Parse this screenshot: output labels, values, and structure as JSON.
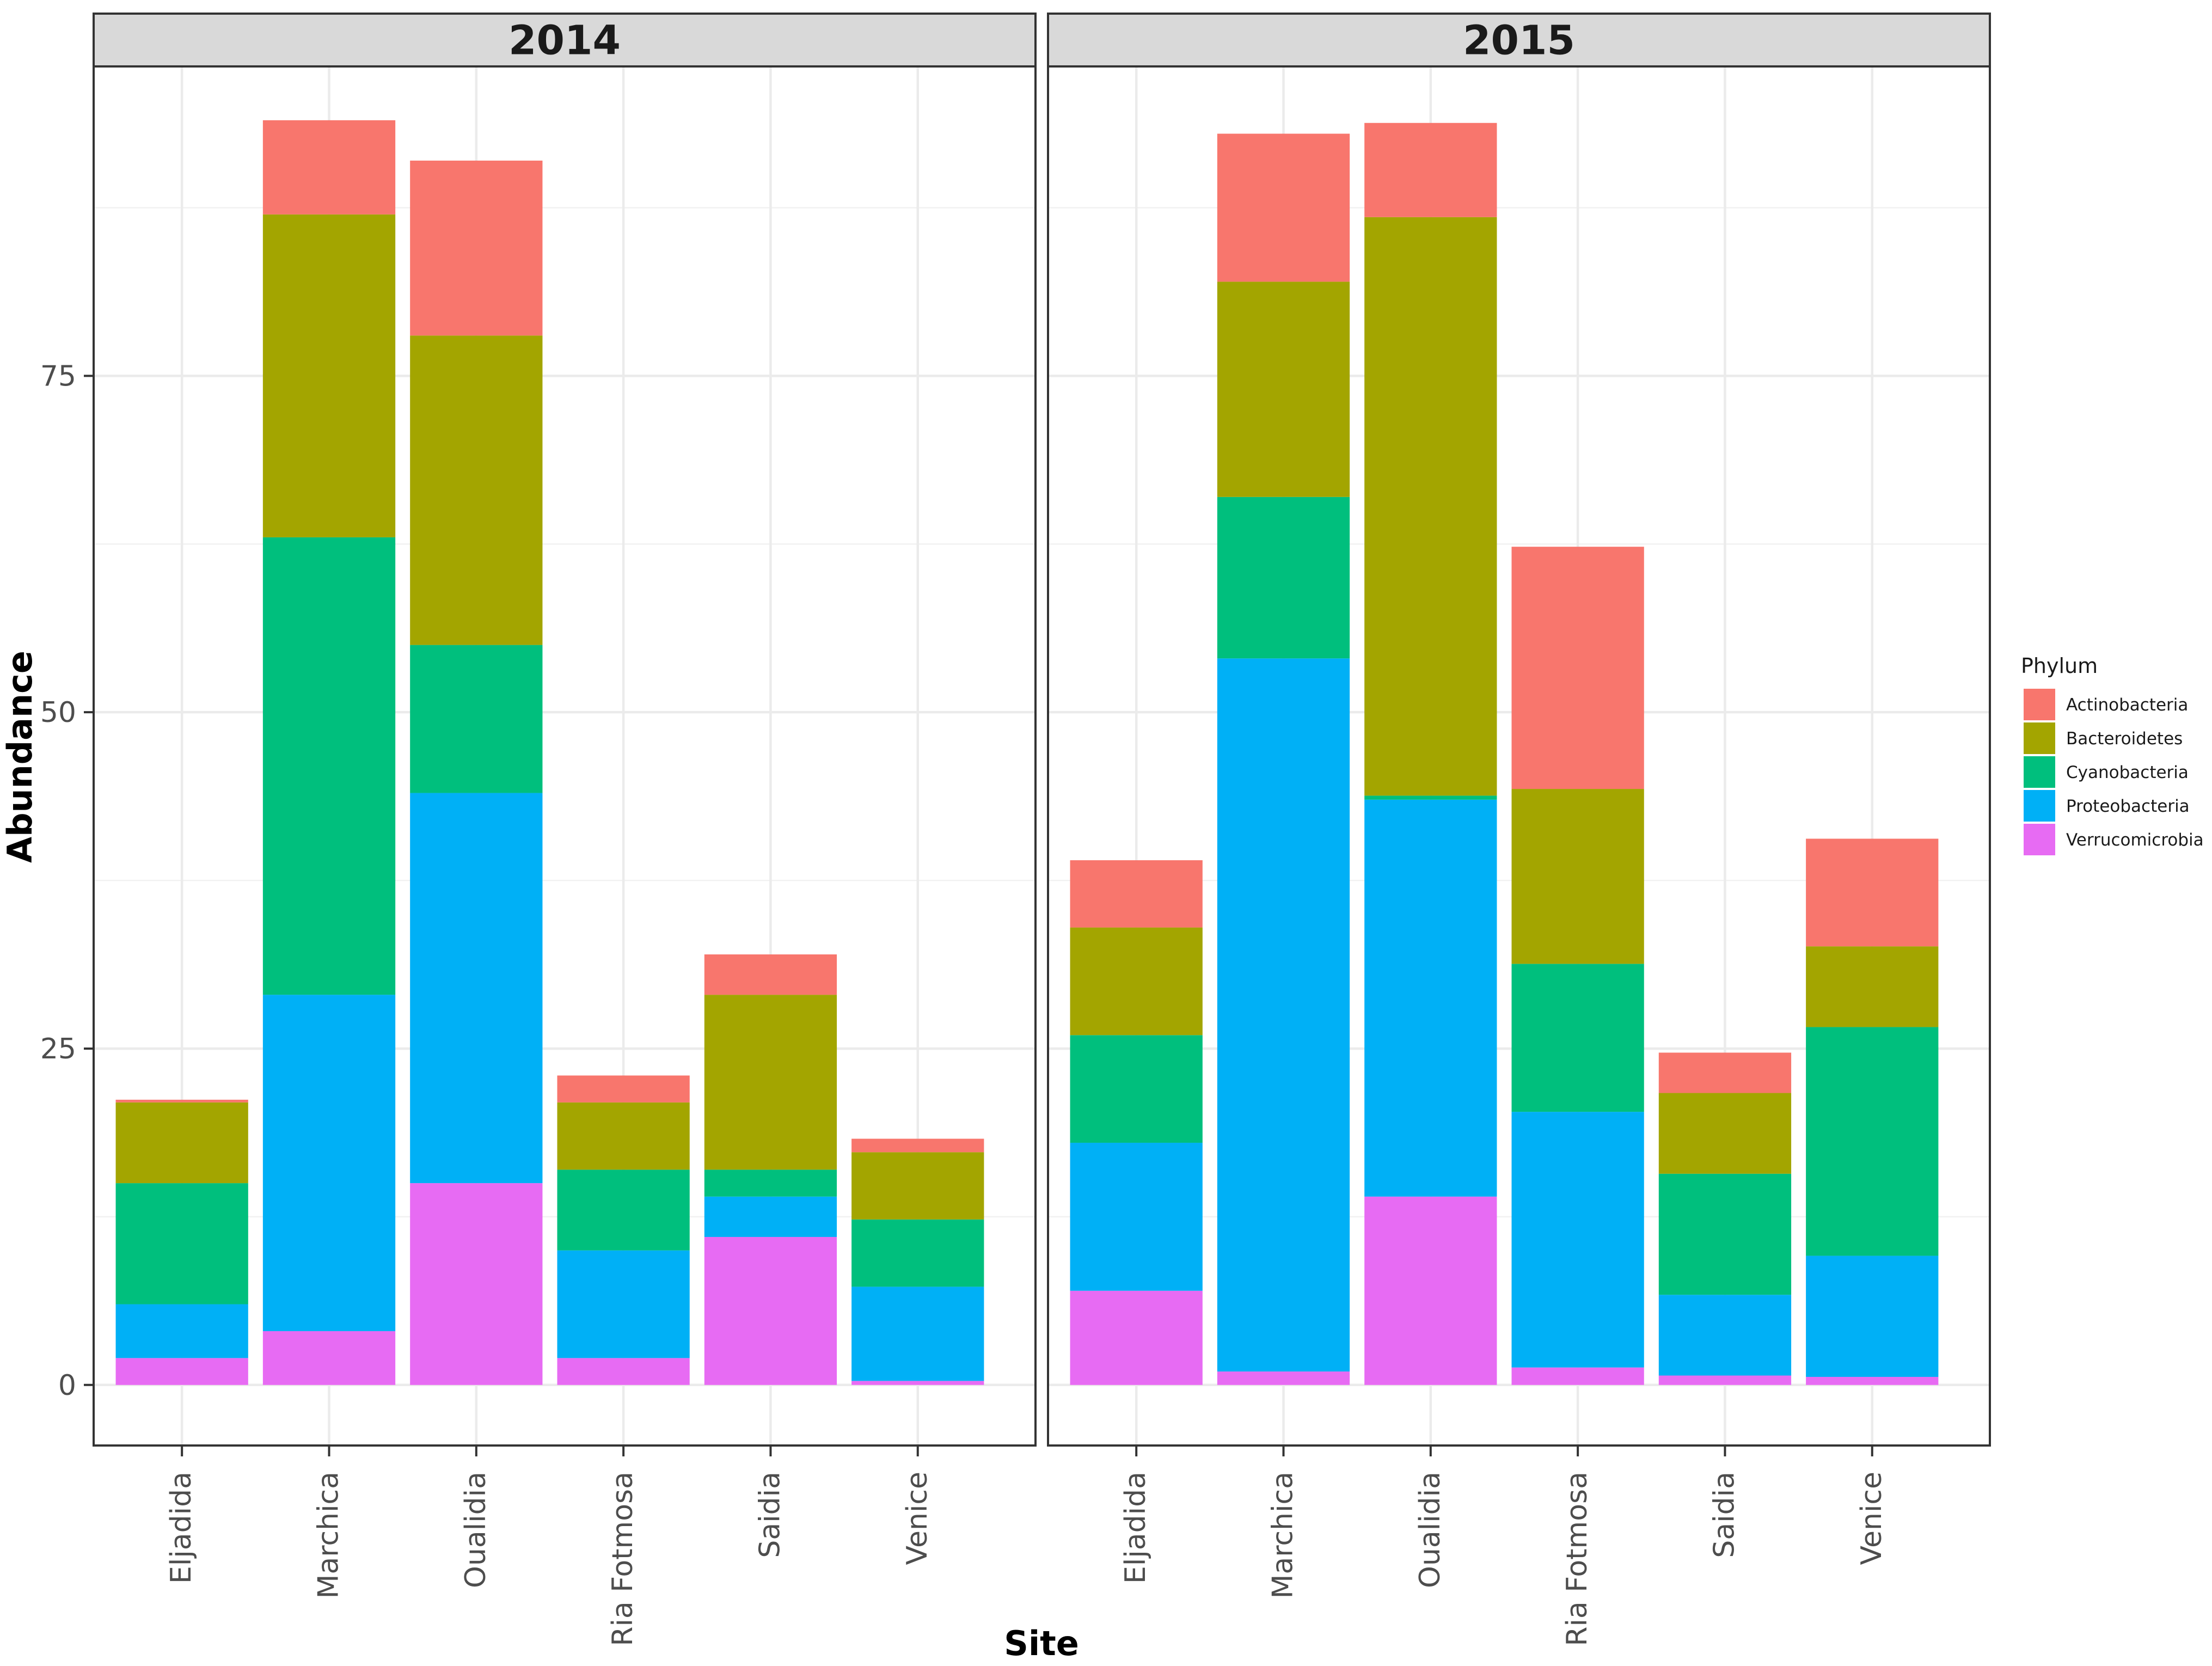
{
  "chart_data": {
    "type": "bar",
    "stacked": true,
    "xlabel": "Site",
    "ylabel": "Abundance",
    "ylim": [
      -4.5,
      98
    ],
    "yticks": [
      0,
      25,
      50,
      75
    ],
    "legend": {
      "title": "Phylum",
      "placement": "right",
      "entries": [
        "Actinobacteria",
        "Bacteroidetes",
        "Cyanobacteria",
        "Proteobacteria",
        "Verrucomicrobia"
      ]
    },
    "colors": {
      "Actinobacteria": "#F8766D",
      "Bacteroidetes": "#A3A500",
      "Cyanobacteria": "#00BF7D",
      "Proteobacteria": "#00B0F6",
      "Verrucomicrobia": "#E76BF3"
    },
    "stack_order_bottom_to_top": [
      "Verrucomicrobia",
      "Proteobacteria",
      "Cyanobacteria",
      "Bacteroidetes",
      "Actinobacteria"
    ],
    "categories": [
      "Eljadida",
      "Marchica",
      "Oualidia",
      "Ria Fotmosa",
      "Saidia",
      "Venice"
    ],
    "panels": [
      {
        "title": "2014",
        "series": [
          {
            "name": "Actinobacteria",
            "values": [
              0.2,
              7.0,
              13.0,
              2.0,
              3.0,
              1.0
            ]
          },
          {
            "name": "Bacteroidetes",
            "values": [
              6.0,
              24.0,
              23.0,
              5.0,
              13.0,
              5.0
            ]
          },
          {
            "name": "Cyanobacteria",
            "values": [
              9.0,
              34.0,
              11.0,
              6.0,
              2.0,
              5.0
            ]
          },
          {
            "name": "Proteobacteria",
            "values": [
              4.0,
              25.0,
              29.0,
              8.0,
              3.0,
              7.0
            ]
          },
          {
            "name": "Verrucomicrobia",
            "values": [
              2.0,
              4.0,
              15.0,
              2.0,
              11.0,
              0.3
            ]
          }
        ]
      },
      {
        "title": "2015",
        "series": [
          {
            "name": "Actinobacteria",
            "values": [
              5.0,
              11.0,
              7.0,
              18.0,
              3.0,
              8.0
            ]
          },
          {
            "name": "Bacteroidetes",
            "values": [
              8.0,
              16.0,
              43.0,
              13.0,
              6.0,
              6.0
            ]
          },
          {
            "name": "Cyanobacteria",
            "values": [
              8.0,
              12.0,
              0.3,
              11.0,
              9.0,
              17.0
            ]
          },
          {
            "name": "Proteobacteria",
            "values": [
              11.0,
              53.0,
              29.5,
              19.0,
              6.0,
              9.0
            ]
          },
          {
            "name": "Verrucomicrobia",
            "values": [
              7.0,
              1.0,
              14.0,
              1.3,
              0.7,
              0.6
            ]
          }
        ]
      }
    ]
  }
}
